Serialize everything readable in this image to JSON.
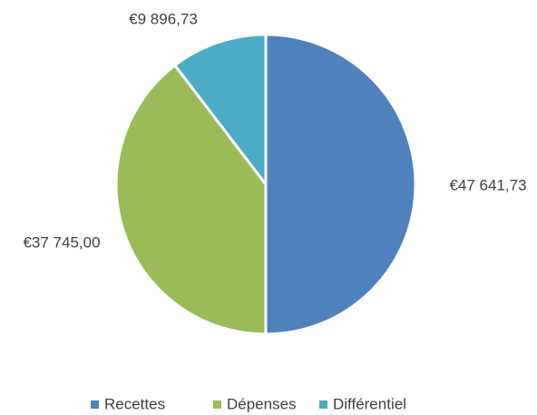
{
  "chart_data": {
    "type": "pie",
    "categories": [
      "Recettes",
      "Dépenses",
      "Différentiel"
    ],
    "values": [
      47641.73,
      37745.0,
      9896.73
    ],
    "value_labels": [
      "€47 641,73",
      "€37 745,00",
      "€9 896,73"
    ],
    "colors": [
      "#4f81bd",
      "#9bbb59",
      "#4bacc6"
    ],
    "legend": "bottom"
  }
}
